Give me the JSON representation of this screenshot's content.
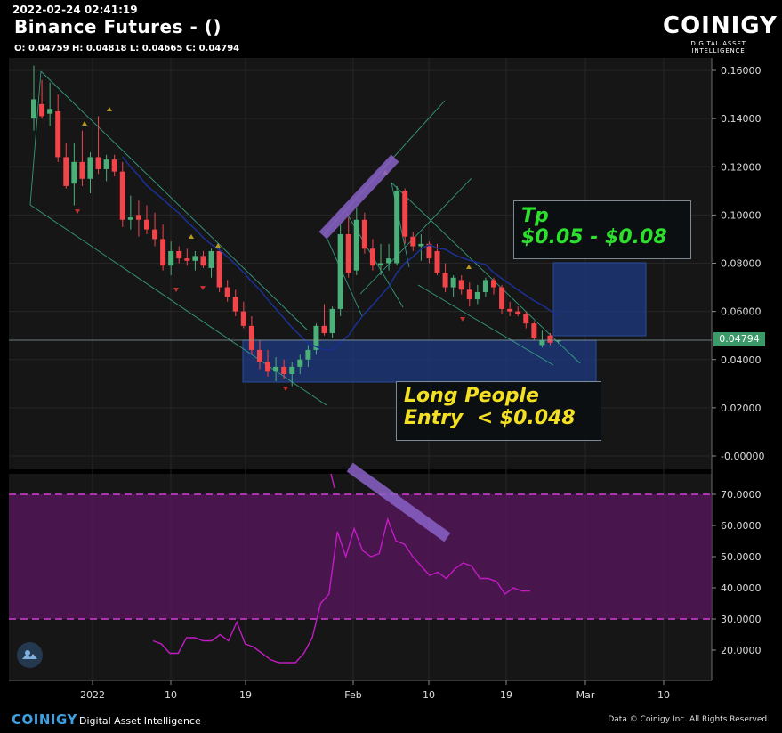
{
  "header": {
    "timestamp": "2022-02-24 02:41:19",
    "title": "Binance Futures -  ()",
    "ohlc": "O: 0.04759 H: 0.04818 L: 0.04665 C: 0.04794"
  },
  "logo": {
    "word": "COINIGY",
    "tagline": "DIGITAL ASSET INTELLIGENCE"
  },
  "footer": {
    "brand": "COINIGY",
    "tagline": "Digital Asset Intelligence",
    "copyright": "Data © Coinigy Inc.  All Rights Reserved."
  },
  "annotations": {
    "tp_line1": "Tp",
    "tp_line2": "$0.05 - $0.08",
    "entry_line1": "Long People",
    "entry_line2": "Entry  < $0.048"
  },
  "colors": {
    "background": "#000000",
    "panel": "#161616",
    "up": "#4caf7a",
    "down": "#f0454b",
    "ma": "#1a2f8f",
    "rsi": "#c21bc4",
    "rsi_band": "#6a1a6e",
    "zone": "#1c3a82",
    "tp_text": "#2de02d",
    "entry_text": "#f4e023",
    "price_tag": "#3c9a6a"
  },
  "chart_data": [
    {
      "type": "candlestick",
      "y_ticks": [
        "0.16000",
        "0.14000",
        "0.12000",
        "0.10000",
        "0.08000",
        "0.06000",
        "0.04000",
        "0.02000",
        "-0.00000"
      ],
      "ylim": [
        -0.004,
        0.165
      ],
      "x_ticks": [
        "2022",
        "10",
        "19",
        "Feb",
        "10",
        "19",
        "Mar",
        "10"
      ],
      "last_price": "0.04794",
      "candles": [
        {
          "o": 0.14,
          "h": 0.162,
          "l": 0.135,
          "c": 0.148
        },
        {
          "o": 0.146,
          "h": 0.156,
          "l": 0.14,
          "c": 0.141
        },
        {
          "o": 0.142,
          "h": 0.155,
          "l": 0.137,
          "c": 0.144
        },
        {
          "o": 0.143,
          "h": 0.15,
          "l": 0.122,
          "c": 0.124
        },
        {
          "o": 0.124,
          "h": 0.13,
          "l": 0.111,
          "c": 0.112
        },
        {
          "o": 0.113,
          "h": 0.13,
          "l": 0.104,
          "c": 0.122
        },
        {
          "o": 0.122,
          "h": 0.135,
          "l": 0.112,
          "c": 0.115
        },
        {
          "o": 0.115,
          "h": 0.126,
          "l": 0.109,
          "c": 0.124
        },
        {
          "o": 0.124,
          "h": 0.141,
          "l": 0.117,
          "c": 0.119
        },
        {
          "o": 0.119,
          "h": 0.125,
          "l": 0.114,
          "c": 0.123
        },
        {
          "o": 0.123,
          "h": 0.125,
          "l": 0.116,
          "c": 0.118
        },
        {
          "o": 0.118,
          "h": 0.122,
          "l": 0.095,
          "c": 0.098
        },
        {
          "o": 0.098,
          "h": 0.108,
          "l": 0.094,
          "c": 0.099
        },
        {
          "o": 0.1,
          "h": 0.106,
          "l": 0.091,
          "c": 0.098
        },
        {
          "o": 0.098,
          "h": 0.104,
          "l": 0.092,
          "c": 0.094
        },
        {
          "o": 0.094,
          "h": 0.101,
          "l": 0.087,
          "c": 0.09
        },
        {
          "o": 0.09,
          "h": 0.096,
          "l": 0.077,
          "c": 0.079
        },
        {
          "o": 0.079,
          "h": 0.089,
          "l": 0.075,
          "c": 0.085
        },
        {
          "o": 0.085,
          "h": 0.087,
          "l": 0.08,
          "c": 0.082
        },
        {
          "o": 0.082,
          "h": 0.086,
          "l": 0.079,
          "c": 0.081
        },
        {
          "o": 0.081,
          "h": 0.085,
          "l": 0.077,
          "c": 0.083
        },
        {
          "o": 0.083,
          "h": 0.085,
          "l": 0.078,
          "c": 0.079
        },
        {
          "o": 0.078,
          "h": 0.086,
          "l": 0.074,
          "c": 0.085
        },
        {
          "o": 0.085,
          "h": 0.086,
          "l": 0.068,
          "c": 0.07
        },
        {
          "o": 0.07,
          "h": 0.073,
          "l": 0.064,
          "c": 0.066
        },
        {
          "o": 0.066,
          "h": 0.069,
          "l": 0.058,
          "c": 0.06
        },
        {
          "o": 0.06,
          "h": 0.064,
          "l": 0.053,
          "c": 0.054
        },
        {
          "o": 0.054,
          "h": 0.058,
          "l": 0.042,
          "c": 0.044
        },
        {
          "o": 0.044,
          "h": 0.048,
          "l": 0.036,
          "c": 0.039
        },
        {
          "o": 0.039,
          "h": 0.044,
          "l": 0.033,
          "c": 0.035
        },
        {
          "o": 0.035,
          "h": 0.041,
          "l": 0.031,
          "c": 0.037
        },
        {
          "o": 0.037,
          "h": 0.04,
          "l": 0.032,
          "c": 0.034
        },
        {
          "o": 0.034,
          "h": 0.039,
          "l": 0.029,
          "c": 0.037
        },
        {
          "o": 0.037,
          "h": 0.042,
          "l": 0.034,
          "c": 0.04
        },
        {
          "o": 0.04,
          "h": 0.046,
          "l": 0.037,
          "c": 0.044
        },
        {
          "o": 0.044,
          "h": 0.055,
          "l": 0.042,
          "c": 0.054
        },
        {
          "o": 0.054,
          "h": 0.063,
          "l": 0.05,
          "c": 0.051
        },
        {
          "o": 0.051,
          "h": 0.062,
          "l": 0.049,
          "c": 0.061
        },
        {
          "o": 0.061,
          "h": 0.096,
          "l": 0.058,
          "c": 0.092
        },
        {
          "o": 0.092,
          "h": 0.099,
          "l": 0.074,
          "c": 0.076
        },
        {
          "o": 0.077,
          "h": 0.103,
          "l": 0.075,
          "c": 0.098
        },
        {
          "o": 0.098,
          "h": 0.101,
          "l": 0.084,
          "c": 0.086
        },
        {
          "o": 0.086,
          "h": 0.09,
          "l": 0.077,
          "c": 0.079
        },
        {
          "o": 0.079,
          "h": 0.088,
          "l": 0.075,
          "c": 0.08
        },
        {
          "o": 0.08,
          "h": 0.088,
          "l": 0.077,
          "c": 0.082
        },
        {
          "o": 0.08,
          "h": 0.112,
          "l": 0.079,
          "c": 0.11
        },
        {
          "o": 0.11,
          "h": 0.111,
          "l": 0.088,
          "c": 0.091
        },
        {
          "o": 0.091,
          "h": 0.093,
          "l": 0.085,
          "c": 0.087
        },
        {
          "o": 0.087,
          "h": 0.092,
          "l": 0.081,
          "c": 0.088
        },
        {
          "o": 0.088,
          "h": 0.089,
          "l": 0.08,
          "c": 0.082
        },
        {
          "o": 0.085,
          "h": 0.088,
          "l": 0.075,
          "c": 0.076
        },
        {
          "o": 0.076,
          "h": 0.08,
          "l": 0.068,
          "c": 0.07
        },
        {
          "o": 0.07,
          "h": 0.075,
          "l": 0.066,
          "c": 0.074
        },
        {
          "o": 0.073,
          "h": 0.075,
          "l": 0.067,
          "c": 0.069
        },
        {
          "o": 0.069,
          "h": 0.072,
          "l": 0.062,
          "c": 0.065
        },
        {
          "o": 0.065,
          "h": 0.071,
          "l": 0.063,
          "c": 0.068
        },
        {
          "o": 0.068,
          "h": 0.074,
          "l": 0.066,
          "c": 0.073
        },
        {
          "o": 0.073,
          "h": 0.074,
          "l": 0.067,
          "c": 0.07
        },
        {
          "o": 0.07,
          "h": 0.071,
          "l": 0.059,
          "c": 0.061
        },
        {
          "o": 0.061,
          "h": 0.064,
          "l": 0.058,
          "c": 0.06
        },
        {
          "o": 0.06,
          "h": 0.062,
          "l": 0.058,
          "c": 0.059
        },
        {
          "o": 0.059,
          "h": 0.06,
          "l": 0.053,
          "c": 0.055
        },
        {
          "o": 0.055,
          "h": 0.056,
          "l": 0.048,
          "c": 0.049
        },
        {
          "o": 0.046,
          "h": 0.052,
          "l": 0.045,
          "c": 0.048
        },
        {
          "o": 0.05,
          "h": 0.051,
          "l": 0.046,
          "c": 0.047
        },
        {
          "o": 0.0476,
          "h": 0.0482,
          "l": 0.0467,
          "c": 0.0479
        }
      ]
    },
    {
      "type": "line",
      "y_ticks": [
        "70.0000",
        "60.0000",
        "50.0000",
        "40.0000",
        "30.0000",
        "20.0000"
      ],
      "ylim": [
        10,
        76
      ],
      "band": [
        30,
        70
      ],
      "values": [
        23,
        22,
        19,
        19,
        24,
        24,
        23,
        23,
        25,
        23,
        29,
        22,
        21,
        19,
        17,
        16,
        16,
        16,
        19,
        24,
        35,
        38,
        58,
        50,
        59,
        52,
        50,
        51,
        62,
        55,
        54,
        50,
        47,
        44,
        45,
        43,
        46,
        48,
        47,
        43,
        43,
        42,
        38,
        40,
        39,
        39
      ]
    }
  ]
}
